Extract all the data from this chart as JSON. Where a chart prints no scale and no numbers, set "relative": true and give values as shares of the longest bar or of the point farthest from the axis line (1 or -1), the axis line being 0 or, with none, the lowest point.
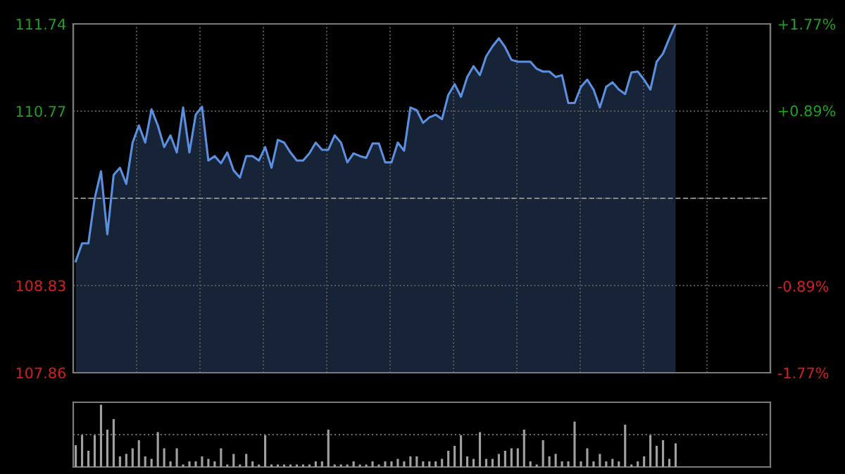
{
  "chart_data": [
    {
      "type": "area",
      "categories": [
        null,
        null,
        null,
        null,
        null,
        null,
        null,
        null,
        null,
        null,
        null,
        null,
        null,
        null,
        null,
        null,
        null,
        null,
        null,
        null,
        null,
        null,
        null,
        null,
        null,
        null,
        null,
        null,
        null,
        null,
        null,
        null,
        null,
        null,
        null,
        null,
        null,
        null,
        null,
        null,
        null,
        null,
        null,
        null,
        null,
        null,
        null,
        null,
        null,
        null,
        null,
        null,
        null,
        null,
        null,
        null,
        null,
        null,
        null,
        null,
        null,
        null,
        null,
        null,
        null,
        null,
        null,
        null,
        null,
        null,
        null,
        null,
        null,
        null,
        null,
        null,
        null,
        null,
        null,
        null,
        null,
        null,
        null,
        null,
        null,
        null,
        null,
        null,
        null,
        null,
        null,
        null,
        null,
        null,
        null,
        null
      ],
      "series": [
        {
          "color": "#5b8fe0",
          "values": [
            109.1,
            109.3,
            109.3,
            109.8,
            110.1,
            109.4,
            110.06,
            110.14,
            109.96,
            110.42,
            110.61,
            110.42,
            110.79,
            110.61,
            110.37,
            110.5,
            110.31,
            110.81,
            110.31,
            110.73,
            110.82,
            110.22,
            110.27,
            110.19,
            110.31,
            110.11,
            110.03,
            110.27,
            110.27,
            110.22,
            110.37,
            110.14,
            110.45,
            110.42,
            110.31,
            110.22,
            110.22,
            110.3,
            110.42,
            110.34,
            110.34,
            110.5,
            110.42,
            110.2,
            110.3,
            110.27,
            110.25,
            110.41,
            110.41,
            110.2,
            110.2,
            110.42,
            110.33,
            110.81,
            110.78,
            110.64,
            110.7,
            110.73,
            110.68,
            110.95,
            111.07,
            110.93,
            111.15,
            111.27,
            111.17,
            111.38,
            111.49,
            111.58,
            111.48,
            111.34,
            111.32,
            111.32,
            111.32,
            111.24,
            111.21,
            111.21,
            111.15,
            111.17,
            110.86,
            110.86,
            111.04,
            111.12,
            111.01,
            110.81,
            111.04,
            111.09,
            111.01,
            110.96,
            111.2,
            111.21,
            111.12,
            111.01,
            111.32,
            111.41,
            111.58,
            111.74
          ]
        }
      ],
      "ylim": [
        107.86,
        111.74
      ],
      "yticks": [
        107.86,
        108.83,
        {
          "value": 109.8,
          "label": null
        },
        110.77,
        111.74
      ],
      "y2lim": [
        -1.77,
        1.77
      ],
      "y2ticks": [
        {
          "value": -1.77,
          "label": "-1.77%"
        },
        {
          "value": -0.89,
          "label": "-0.89%"
        },
        {
          "value": 0,
          "label": null
        },
        {
          "value": 0.89,
          "label": "+0.89%"
        },
        {
          "value": 1.77,
          "label": "+1.77%"
        }
      ],
      "ref_lines": [
        {
          "axis": "y",
          "value": 109.8,
          "color": "#8a8a8a",
          "line_style": "dashed"
        }
      ],
      "grid": true,
      "tick_labels": "y",
      "legend": false
    },
    {
      "type": "bar",
      "relative": true,
      "categories": [
        null,
        null,
        null,
        null,
        null,
        null,
        null,
        null,
        null,
        null,
        null,
        null,
        null,
        null,
        null,
        null,
        null,
        null,
        null,
        null,
        null,
        null,
        null,
        null,
        null,
        null,
        null,
        null,
        null,
        null,
        null,
        null,
        null,
        null,
        null,
        null,
        null,
        null,
        null,
        null,
        null,
        null,
        null,
        null,
        null,
        null,
        null,
        null,
        null,
        null,
        null,
        null,
        null,
        null,
        null,
        null,
        null,
        null,
        null,
        null,
        null,
        null,
        null,
        null,
        null,
        null,
        null,
        null,
        null,
        null,
        null,
        null,
        null,
        null,
        null,
        null,
        null,
        null,
        null,
        null,
        null,
        null,
        null,
        null,
        null,
        null,
        null,
        null,
        null,
        null,
        null,
        null,
        null,
        null,
        null,
        null
      ],
      "series": [
        {
          "color": "#a0a0a0",
          "values": [
            0.35,
            0.51,
            0.26,
            0.51,
            1.0,
            0.6,
            0.77,
            0.17,
            0.21,
            0.3,
            0.43,
            0.17,
            0.13,
            0.56,
            0.3,
            0.09,
            0.3,
            0.04,
            0.09,
            0.09,
            0.17,
            0.13,
            0.09,
            0.3,
            0.04,
            0.21,
            0.04,
            0.21,
            0.09,
            0.04,
            0.51,
            0.04,
            0.04,
            0.04,
            0.04,
            0.04,
            0.04,
            0.04,
            0.09,
            0.09,
            0.6,
            0.04,
            0.04,
            0.04,
            0.09,
            0.04,
            0.04,
            0.09,
            0.04,
            0.09,
            0.09,
            0.13,
            0.09,
            0.17,
            0.17,
            0.09,
            0.09,
            0.09,
            0.13,
            0.26,
            0.34,
            0.51,
            0.17,
            0.13,
            0.56,
            0.13,
            0.13,
            0.21,
            0.26,
            0.3,
            0.3,
            0.6,
            0.09,
            0.04,
            0.43,
            0.17,
            0.21,
            0.09,
            0.09,
            0.73,
            0.09,
            0.3,
            0.09,
            0.21,
            0.09,
            0.13,
            0.09,
            0.68,
            0.04,
            0.09,
            0.17,
            0.51,
            0.34,
            0.43,
            0.13,
            0.38
          ]
        }
      ],
      "ref_lines": [
        {
          "axis": "y",
          "value": 0.52,
          "color": "#6a6a6a",
          "line_style": "dotted"
        }
      ],
      "tick_labels": false,
      "legend": false
    }
  ]
}
